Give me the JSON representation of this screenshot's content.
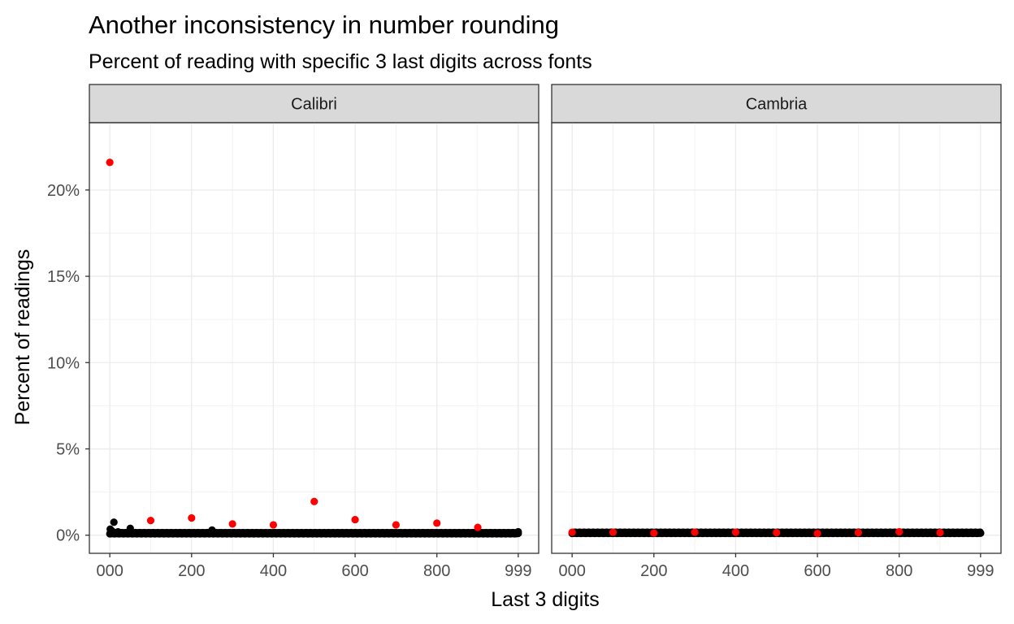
{
  "chart_data": {
    "type": "scatter",
    "title": "Another inconsistency in number rounding",
    "subtitle": "Percent of reading with specific 3 last digits across fonts",
    "xlabel": "Last 3 digits",
    "ylabel": "Percent of readings",
    "xlim": [
      -50,
      1049
    ],
    "ylim": [
      -1.05,
      23.9
    ],
    "x_ticks": [
      0,
      200,
      400,
      600,
      800,
      999
    ],
    "x_tick_labels": [
      "000",
      "200",
      "400",
      "600",
      "800",
      "999"
    ],
    "y_ticks": [
      0,
      5,
      10,
      15,
      20
    ],
    "y_tick_labels": [
      "0%",
      "5%",
      "10%",
      "15%",
      "20%"
    ],
    "grid": true,
    "colors": {
      "highlight": "#ff0000",
      "base": "#000000",
      "strip": "#d9d9d9",
      "grid": "#ebebeb"
    },
    "panels": [
      {
        "facet": "Calibri",
        "highlight_points": [
          {
            "x": 0,
            "y": 21.6
          },
          {
            "x": 100,
            "y": 0.85
          },
          {
            "x": 200,
            "y": 1.0
          },
          {
            "x": 300,
            "y": 0.65
          },
          {
            "x": 400,
            "y": 0.6
          },
          {
            "x": 500,
            "y": 1.95
          },
          {
            "x": 600,
            "y": 0.9
          },
          {
            "x": 700,
            "y": 0.6
          },
          {
            "x": 800,
            "y": 0.7
          },
          {
            "x": 900,
            "y": 0.45
          }
        ],
        "base_points_sample": [
          {
            "x": 1,
            "y": 0.35
          },
          {
            "x": 5,
            "y": 0.25
          },
          {
            "x": 10,
            "y": 0.75
          },
          {
            "x": 20,
            "y": 0.2
          },
          {
            "x": 50,
            "y": 0.4
          },
          {
            "x": 250,
            "y": 0.3
          },
          {
            "x": 999,
            "y": 0.2
          }
        ],
        "base_level": 0.1
      },
      {
        "facet": "Cambria",
        "highlight_points": [
          {
            "x": 0,
            "y": 0.17
          },
          {
            "x": 100,
            "y": 0.17
          },
          {
            "x": 200,
            "y": 0.12
          },
          {
            "x": 300,
            "y": 0.17
          },
          {
            "x": 400,
            "y": 0.17
          },
          {
            "x": 500,
            "y": 0.15
          },
          {
            "x": 600,
            "y": 0.1
          },
          {
            "x": 700,
            "y": 0.15
          },
          {
            "x": 800,
            "y": 0.2
          },
          {
            "x": 900,
            "y": 0.15
          }
        ],
        "base_points_sample": [
          {
            "x": 999,
            "y": 0.12
          }
        ],
        "base_level": 0.12
      }
    ]
  }
}
